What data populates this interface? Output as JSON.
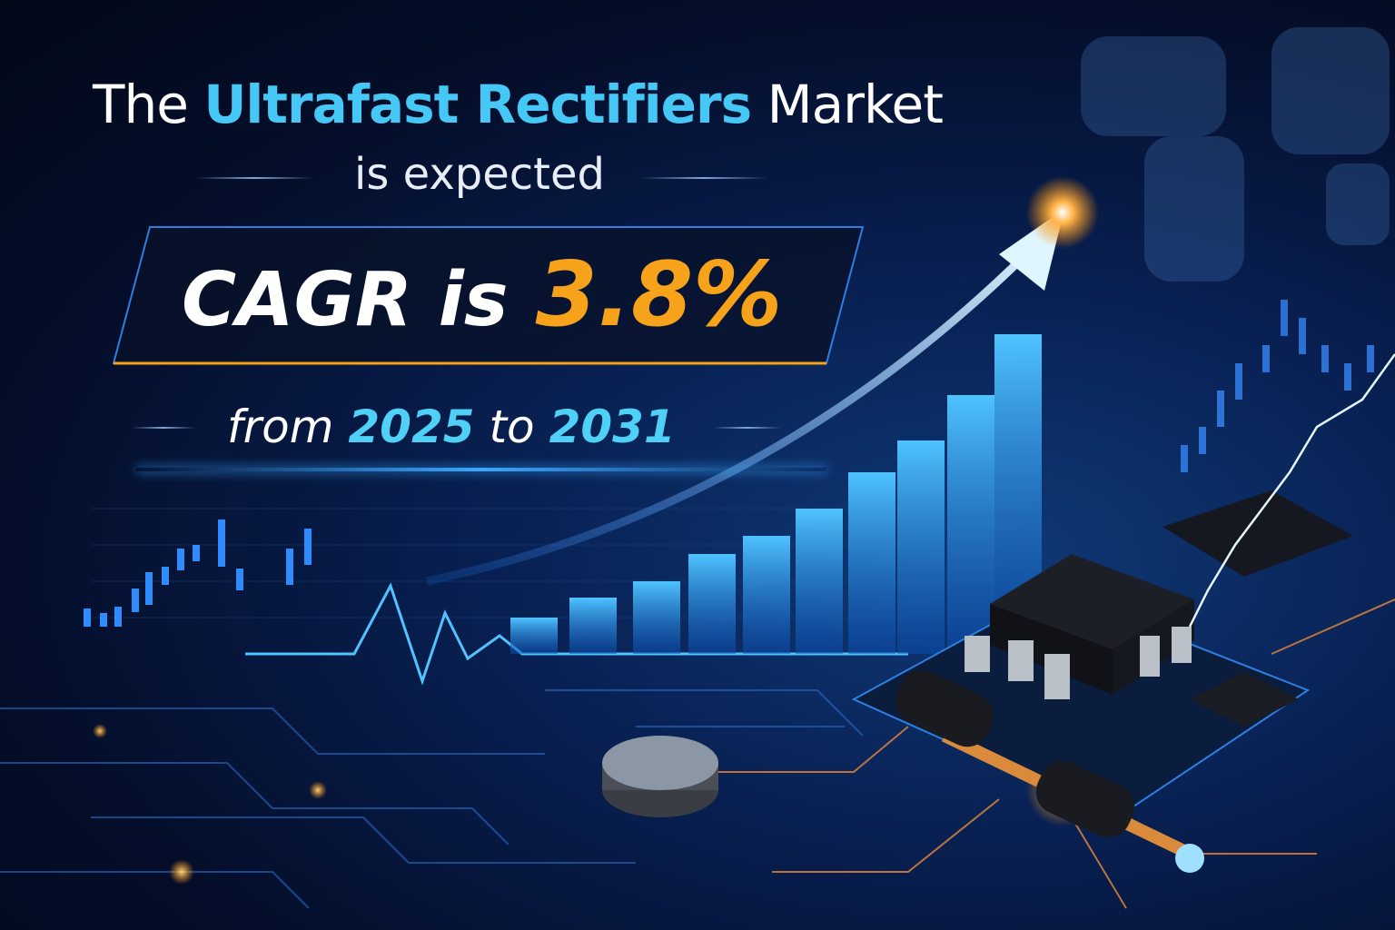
{
  "headline": {
    "prefix": "The",
    "highlight": "Ultrafast Rectifiers",
    "suffix": "Market",
    "line2": "is expected"
  },
  "cagr": {
    "label": "CAGR is",
    "value": "3.8%"
  },
  "period": {
    "from_label": "from",
    "start_year": "2025",
    "to_label": "to",
    "end_year": "2031"
  },
  "colors": {
    "highlight": "#45c8f5",
    "accent_orange": "#f7a21b",
    "background": "#040e2a"
  },
  "icons": [
    "growth-arrow",
    "bar-chart",
    "candlestick-chart",
    "ic-chip",
    "diode",
    "circuit-board",
    "world-map"
  ]
}
